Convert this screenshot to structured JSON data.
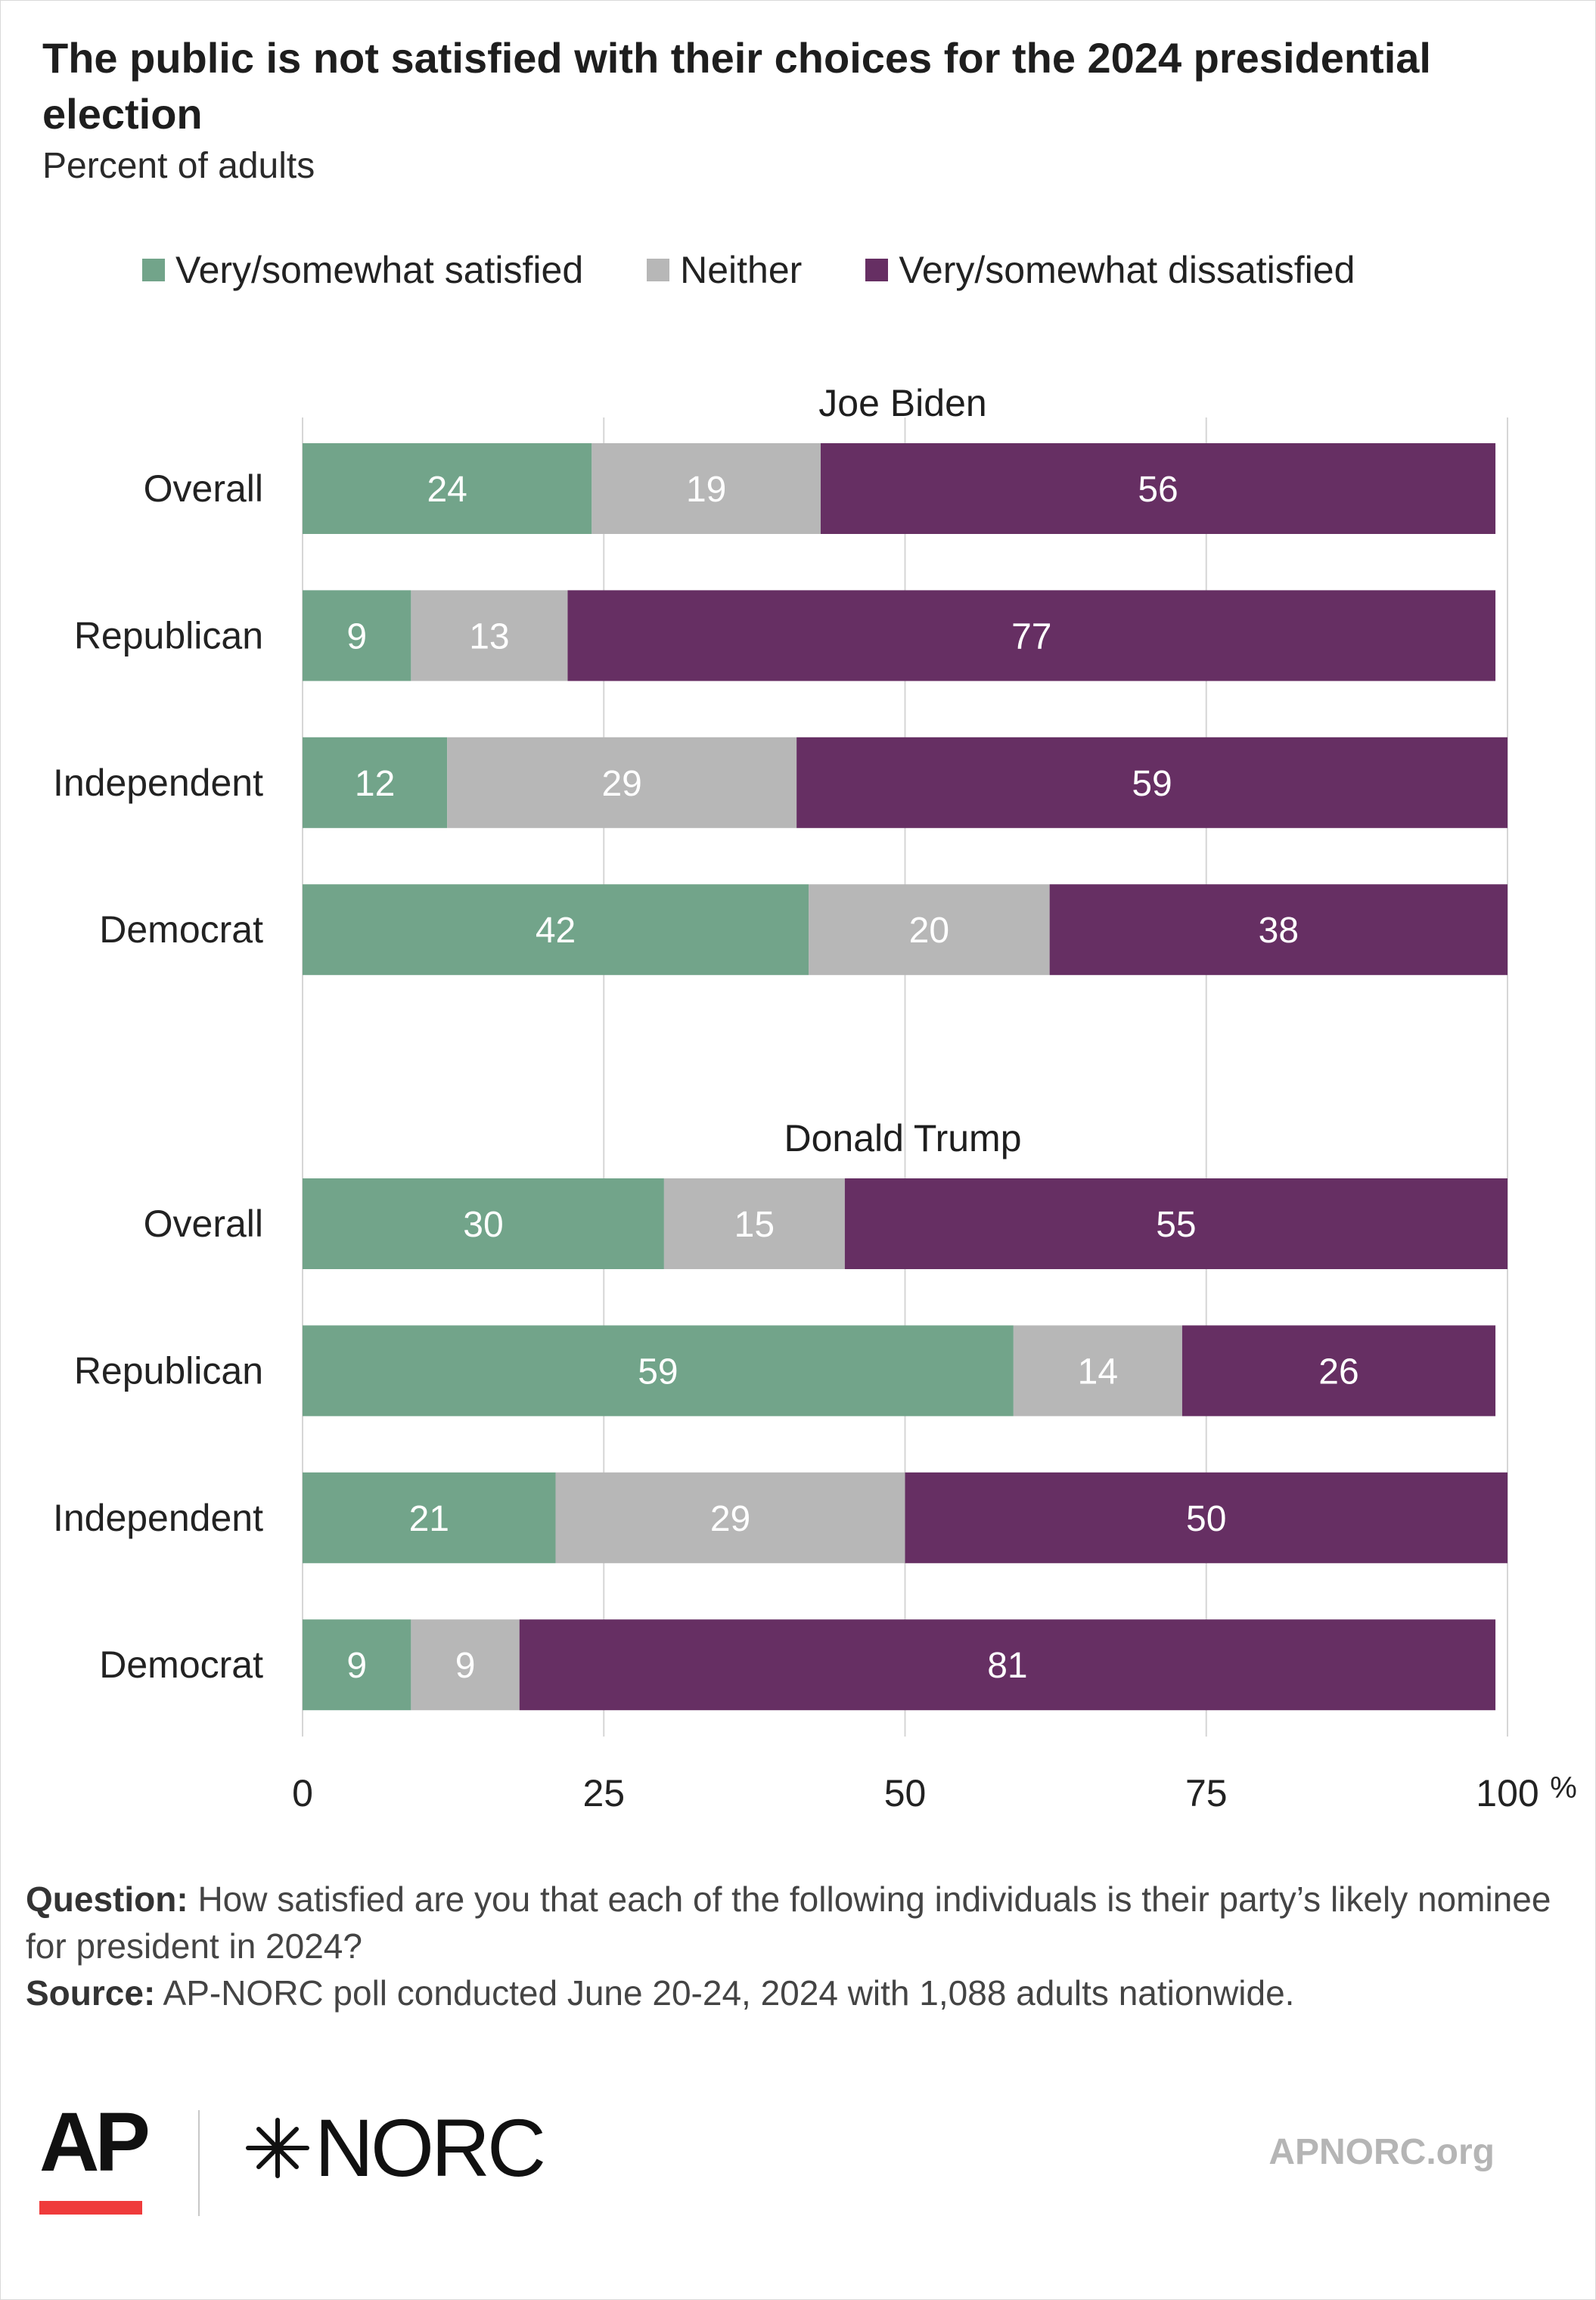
{
  "title": "The public is not satisfied with their choices for the 2024 presidential election",
  "subtitle": "Percent of adults",
  "colors": {
    "satisfied": "#72a48a",
    "neither": "#b7b7b7",
    "dissatisfied": "#662f63",
    "grid": "#d6d6d6"
  },
  "chart_data": {
    "type": "bar",
    "orientation": "horizontal",
    "stacked": true,
    "legend": [
      "Very/somewhat satisfied",
      "Neither",
      "Very/somewhat dissatisfied"
    ],
    "legend_position": "top",
    "xlim": [
      0,
      100
    ],
    "x_ticks": [
      "0",
      "25",
      "50",
      "75",
      "100"
    ],
    "x_unit": "%",
    "grid": true,
    "panels": [
      {
        "title": "Joe Biden",
        "categories": [
          "Overall",
          "Republican",
          "Independent",
          "Democrat"
        ],
        "series": [
          {
            "name": "Very/somewhat satisfied",
            "values": [
              24,
              9,
              12,
              42
            ]
          },
          {
            "name": "Neither",
            "values": [
              19,
              13,
              29,
              20
            ]
          },
          {
            "name": "Very/somewhat dissatisfied",
            "values": [
              56,
              77,
              59,
              38
            ]
          }
        ]
      },
      {
        "title": "Donald Trump",
        "categories": [
          "Overall",
          "Republican",
          "Independent",
          "Democrat"
        ],
        "series": [
          {
            "name": "Very/somewhat satisfied",
            "values": [
              30,
              59,
              21,
              9
            ]
          },
          {
            "name": "Neither",
            "values": [
              15,
              14,
              29,
              9
            ]
          },
          {
            "name": "Very/somewhat dissatisfied",
            "values": [
              55,
              26,
              50,
              81
            ]
          }
        ]
      }
    ]
  },
  "notes": {
    "question_label": "Question:",
    "question_text": " How satisfied are you that each of the following individuals is their party’s likely nominee for president in 2024?",
    "source_label": "Source:",
    "source_text": " AP-NORC poll conducted June 20-24, 2024 with 1,088 adults nationwide."
  },
  "footer": {
    "ap_logo_text": "AP",
    "norc_logo_text": "NORC",
    "site": "APNORC.org"
  }
}
